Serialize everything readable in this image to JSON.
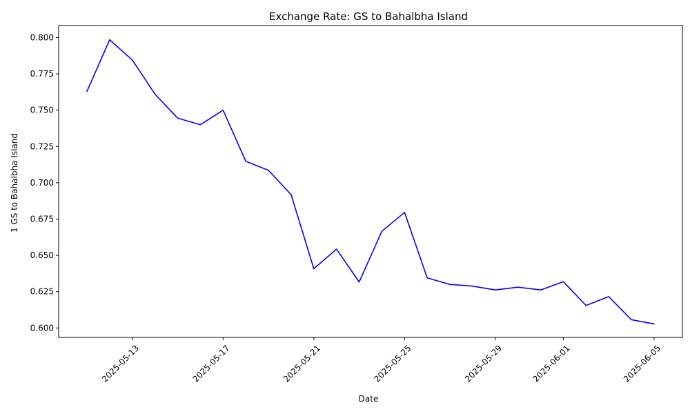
{
  "chart_data": {
    "type": "line",
    "title": "Exchange Rate: GS to Bahalbha Island",
    "xlabel": "Date",
    "ylabel": "1 GS to Bahalbha Island",
    "x_ticks": [
      "2025-05-13",
      "2025-05-17",
      "2025-05-21",
      "2025-05-25",
      "2025-05-29",
      "2025-06-01",
      "2025-06-05"
    ],
    "y_ticks": [
      "0.600",
      "0.625",
      "0.650",
      "0.675",
      "0.700",
      "0.725",
      "0.750",
      "0.775",
      "0.800"
    ],
    "xlim": [
      "2025-05-10",
      "2025-06-06"
    ],
    "ylim": [
      0.5935,
      0.8083
    ],
    "grid": false,
    "series": [
      {
        "color": "#0000ff",
        "points": [
          {
            "x": "2025-05-11",
            "y": 0.763
          },
          {
            "x": "2025-05-12",
            "y": 0.7985
          },
          {
            "x": "2025-05-13",
            "y": 0.7845
          },
          {
            "x": "2025-05-14",
            "y": 0.761
          },
          {
            "x": "2025-05-15",
            "y": 0.7445
          },
          {
            "x": "2025-05-16",
            "y": 0.74
          },
          {
            "x": "2025-05-17",
            "y": 0.75
          },
          {
            "x": "2025-05-18",
            "y": 0.7148
          },
          {
            "x": "2025-05-19",
            "y": 0.7086
          },
          {
            "x": "2025-05-20",
            "y": 0.6918
          },
          {
            "x": "2025-05-21",
            "y": 0.6408
          },
          {
            "x": "2025-05-22",
            "y": 0.6543
          },
          {
            "x": "2025-05-23",
            "y": 0.6317
          },
          {
            "x": "2025-05-24",
            "y": 0.6666
          },
          {
            "x": "2025-05-25",
            "y": 0.6796
          },
          {
            "x": "2025-05-26",
            "y": 0.6345
          },
          {
            "x": "2025-05-27",
            "y": 0.63
          },
          {
            "x": "2025-05-28",
            "y": 0.6288
          },
          {
            "x": "2025-05-29",
            "y": 0.6262
          },
          {
            "x": "2025-05-30",
            "y": 0.6281
          },
          {
            "x": "2025-05-31",
            "y": 0.6262
          },
          {
            "x": "2025-06-01",
            "y": 0.6319
          },
          {
            "x": "2025-06-02",
            "y": 0.6155
          },
          {
            "x": "2025-06-03",
            "y": 0.6216
          },
          {
            "x": "2025-06-04",
            "y": 0.6057
          },
          {
            "x": "2025-06-05",
            "y": 0.6028
          }
        ]
      }
    ]
  }
}
